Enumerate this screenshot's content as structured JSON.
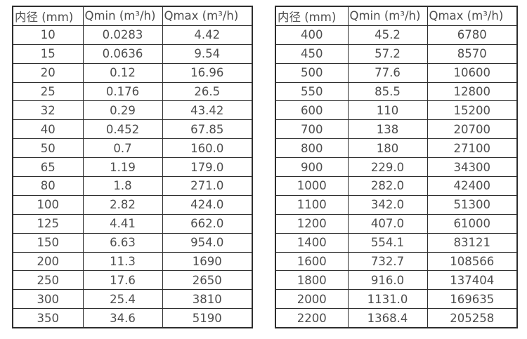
{
  "page": {
    "background_color": "#ffffff",
    "text_color": "#4d4d4d",
    "border_color": "#2e2e2e"
  },
  "tables": [
    {
      "name": "flow-rate-table-small-diameters",
      "headers": [
        "内径 (mm)",
        "Qmin (m³/h)",
        "Qmax (m³/h)"
      ],
      "rows": [
        [
          "10",
          "0.0283",
          "4.42"
        ],
        [
          "15",
          "0.0636",
          "9.54"
        ],
        [
          "20",
          "0.12",
          "16.96"
        ],
        [
          "25",
          "0.176",
          "26.5"
        ],
        [
          "32",
          "0.29",
          "43.42"
        ],
        [
          "40",
          "0.452",
          "67.85"
        ],
        [
          "50",
          "0.7",
          "160.0"
        ],
        [
          "65",
          "1.19",
          "179.0"
        ],
        [
          "80",
          "1.8",
          "271.0"
        ],
        [
          "100",
          "2.82",
          "424.0"
        ],
        [
          "125",
          "4.41",
          "662.0"
        ],
        [
          "150",
          "6.63",
          "954.0"
        ],
        [
          "200",
          "11.3",
          "1690"
        ],
        [
          "250",
          "17.6",
          "2650"
        ],
        [
          "300",
          "25.4",
          "3810"
        ],
        [
          "350",
          "34.6",
          "5190"
        ]
      ]
    },
    {
      "name": "flow-rate-table-large-diameters",
      "headers": [
        "内径 (mm)",
        "Qmin (m³/h)",
        "Qmax (m³/h)"
      ],
      "rows": [
        [
          "400",
          "45.2",
          "6780"
        ],
        [
          "450",
          "57.2",
          "8570"
        ],
        [
          "500",
          "77.6",
          "10600"
        ],
        [
          "550",
          "85.5",
          "12800"
        ],
        [
          "600",
          "110",
          "15200"
        ],
        [
          "700",
          "138",
          "20700"
        ],
        [
          "800",
          "180",
          "27100"
        ],
        [
          "900",
          "229.0",
          "34300"
        ],
        [
          "1000",
          "282.0",
          "42400"
        ],
        [
          "1100",
          "342.0",
          "51300"
        ],
        [
          "1200",
          "407.0",
          "61000"
        ],
        [
          "1400",
          "554.1",
          "83121"
        ],
        [
          "1600",
          "732.7",
          "108566"
        ],
        [
          "1800",
          "916.0",
          "137404"
        ],
        [
          "2000",
          "1131.0",
          "169635"
        ],
        [
          "2200",
          "1368.4",
          "205258"
        ]
      ]
    }
  ],
  "chart_data": [
    {
      "type": "table",
      "title": "Flow rate table (small diameters)",
      "columns": [
        "内径 (mm)",
        "Qmin (m³/h)",
        "Qmax (m³/h)"
      ],
      "diameter_mm": [
        10,
        15,
        20,
        25,
        32,
        40,
        50,
        65,
        80,
        100,
        125,
        150,
        200,
        250,
        300,
        350
      ],
      "qmin": [
        0.0283,
        0.0636,
        0.12,
        0.176,
        0.29,
        0.452,
        0.7,
        1.19,
        1.8,
        2.82,
        4.41,
        6.63,
        11.3,
        17.6,
        25.4,
        34.6
      ],
      "qmax": [
        4.42,
        9.54,
        16.96,
        26.5,
        43.42,
        67.85,
        160.0,
        179.0,
        271.0,
        424.0,
        662.0,
        954.0,
        1690,
        2650,
        3810,
        5190
      ]
    },
    {
      "type": "table",
      "title": "Flow rate table (large diameters)",
      "columns": [
        "内径 (mm)",
        "Qmin (m³/h)",
        "Qmax (m³/h)"
      ],
      "diameter_mm": [
        400,
        450,
        500,
        550,
        600,
        700,
        800,
        900,
        1000,
        1100,
        1200,
        1400,
        1600,
        1800,
        2000,
        2200
      ],
      "qmin": [
        45.2,
        57.2,
        77.6,
        85.5,
        110,
        138,
        180,
        229.0,
        282.0,
        342.0,
        407.0,
        554.1,
        732.7,
        916.0,
        1131.0,
        1368.4
      ],
      "qmax": [
        6780,
        8570,
        10600,
        12800,
        15200,
        20700,
        27100,
        34300,
        42400,
        51300,
        61000,
        83121,
        108566,
        137404,
        169635,
        205258
      ]
    }
  ]
}
